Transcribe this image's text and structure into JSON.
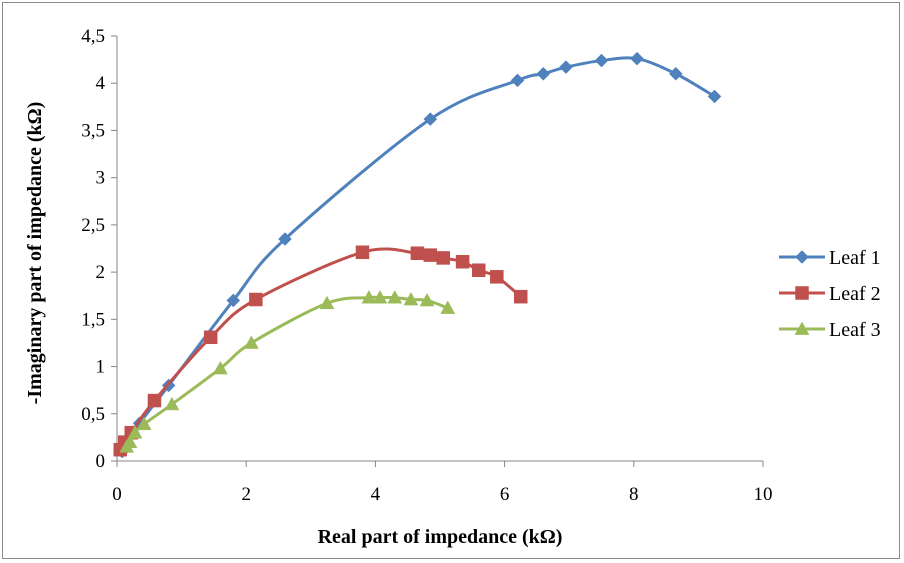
{
  "chart_data": {
    "type": "scatter",
    "title": "",
    "xlabel": "Real part of impedance (kΩ)",
    "ylabel": "-Imaginary part of impedance (kΩ)",
    "xlim": [
      0,
      10
    ],
    "ylim": [
      0,
      4.5
    ],
    "x_ticks": [
      "0",
      "2",
      "4",
      "6",
      "8",
      "10"
    ],
    "y_ticks": [
      "0",
      "0,5",
      "1",
      "1,5",
      "2",
      "2,5",
      "3",
      "3,5",
      "4",
      "4,5"
    ],
    "grid": false,
    "legend_position": "right",
    "smoothed_lines": true,
    "series": [
      {
        "name": "Leaf 1",
        "color": "#4F81BD",
        "marker": "diamond",
        "points": [
          [
            0.08,
            0.1
          ],
          [
            0.15,
            0.2
          ],
          [
            0.35,
            0.4
          ],
          [
            0.8,
            0.8
          ],
          [
            1.8,
            1.7
          ],
          [
            2.6,
            2.35
          ],
          [
            4.85,
            3.62
          ],
          [
            6.2,
            4.03
          ],
          [
            6.6,
            4.1
          ],
          [
            6.95,
            4.17
          ],
          [
            7.5,
            4.24
          ],
          [
            8.05,
            4.26
          ],
          [
            8.65,
            4.1
          ],
          [
            9.25,
            3.86
          ]
        ]
      },
      {
        "name": "Leaf 2",
        "color": "#C0504D",
        "marker": "square",
        "points": [
          [
            0.05,
            0.12
          ],
          [
            0.12,
            0.2
          ],
          [
            0.22,
            0.3
          ],
          [
            0.58,
            0.64
          ],
          [
            1.45,
            1.31
          ],
          [
            2.15,
            1.71
          ],
          [
            3.8,
            2.21
          ],
          [
            4.65,
            2.2
          ],
          [
            4.85,
            2.18
          ],
          [
            5.05,
            2.15
          ],
          [
            5.35,
            2.11
          ],
          [
            5.6,
            2.02
          ],
          [
            5.88,
            1.95
          ],
          [
            6.25,
            1.74
          ]
        ]
      },
      {
        "name": "Leaf 3",
        "color": "#9BBB59",
        "marker": "triangle",
        "points": [
          [
            0.15,
            0.15
          ],
          [
            0.2,
            0.2
          ],
          [
            0.28,
            0.3
          ],
          [
            0.42,
            0.39
          ],
          [
            0.85,
            0.6
          ],
          [
            1.6,
            0.98
          ],
          [
            2.08,
            1.25
          ],
          [
            3.25,
            1.67
          ],
          [
            3.9,
            1.73
          ],
          [
            4.07,
            1.73
          ],
          [
            4.3,
            1.73
          ],
          [
            4.55,
            1.71
          ],
          [
            4.8,
            1.7
          ],
          [
            5.12,
            1.62
          ]
        ]
      }
    ]
  }
}
